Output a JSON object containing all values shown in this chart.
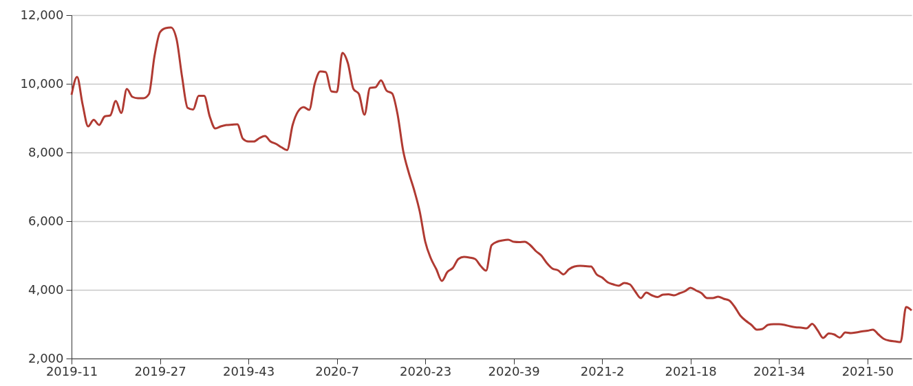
{
  "chart_data": {
    "type": "line",
    "categories": [
      "2019-11",
      null,
      null,
      null,
      null,
      null,
      null,
      null,
      null,
      null,
      null,
      null,
      null,
      null,
      null,
      null,
      "2019-27",
      null,
      null,
      null,
      null,
      null,
      null,
      null,
      null,
      null,
      null,
      null,
      null,
      null,
      null,
      null,
      "2019-43",
      null,
      null,
      null,
      null,
      null,
      null,
      null,
      null,
      null,
      null,
      null,
      null,
      null,
      null,
      null,
      "2020-7",
      null,
      null,
      null,
      null,
      null,
      null,
      null,
      null,
      null,
      null,
      null,
      null,
      null,
      null,
      null,
      "2020-23",
      null,
      null,
      null,
      null,
      null,
      null,
      null,
      null,
      null,
      null,
      null,
      null,
      null,
      null,
      null,
      "2020-39",
      null,
      null,
      null,
      null,
      null,
      null,
      null,
      null,
      null,
      null,
      null,
      null,
      null,
      null,
      null,
      "2021-2",
      null,
      null,
      null,
      null,
      null,
      null,
      null,
      null,
      null,
      null,
      null,
      null,
      null,
      null,
      null,
      "2021-18",
      null,
      null,
      null,
      null,
      null,
      null,
      null,
      null,
      null,
      null,
      null,
      null,
      null,
      null,
      null,
      "2021-34",
      null,
      null,
      null,
      null,
      null,
      null,
      null,
      null,
      null,
      null,
      null,
      null,
      null,
      null,
      null,
      "2021-50",
      null,
      null,
      null,
      null,
      null,
      null,
      null,
      null
    ],
    "series": [
      {
        "color": "#b03a32",
        "values": [
          9680,
          10200,
          9400,
          8760,
          8950,
          8800,
          9050,
          9080,
          9500,
          9150,
          9850,
          9620,
          9580,
          9580,
          9700,
          10800,
          11500,
          11620,
          11640,
          11300,
          10200,
          9300,
          9250,
          9650,
          9650,
          9050,
          8700,
          8760,
          8800,
          8810,
          8820,
          8400,
          8320,
          8320,
          8420,
          8480,
          8320,
          8250,
          8150,
          8070,
          8800,
          9200,
          9320,
          9240,
          10000,
          10360,
          10340,
          9780,
          9760,
          10900,
          10600,
          9850,
          9700,
          9100,
          9880,
          9900,
          10100,
          9800,
          9720,
          9100,
          8050,
          7420,
          6900,
          6280,
          5400,
          4920,
          4600,
          4260,
          4520,
          4640,
          4900,
          4960,
          4940,
          4900,
          4700,
          4560,
          5300,
          5400,
          5440,
          5460,
          5400,
          5390,
          5400,
          5300,
          5130,
          5000,
          4780,
          4620,
          4570,
          4450,
          4600,
          4680,
          4700,
          4690,
          4680,
          4450,
          4360,
          4220,
          4160,
          4120,
          4200,
          4160,
          3950,
          3760,
          3920,
          3840,
          3790,
          3860,
          3870,
          3840,
          3900,
          3960,
          4060,
          3980,
          3900,
          3760,
          3760,
          3800,
          3740,
          3690,
          3500,
          3250,
          3100,
          2980,
          2840,
          2860,
          2980,
          3000,
          3000,
          2980,
          2940,
          2910,
          2900,
          2880,
          3010,
          2820,
          2600,
          2730,
          2700,
          2610,
          2760,
          2740,
          2760,
          2790,
          2810,
          2840,
          2700,
          2570,
          2520,
          2500,
          2480,
          3500,
          3400
        ]
      }
    ],
    "ylim": [
      2000,
      12000
    ],
    "yticks": [
      {
        "value": 2000,
        "label": "2,000"
      },
      {
        "value": 4000,
        "label": "4,000"
      },
      {
        "value": 6000,
        "label": "6,000"
      },
      {
        "value": 8000,
        "label": "8,000"
      },
      {
        "value": 10000,
        "label": "10,000"
      },
      {
        "value": 12000,
        "label": "12,000"
      }
    ],
    "grid": "y",
    "marker": "none",
    "line_style": "solid"
  }
}
